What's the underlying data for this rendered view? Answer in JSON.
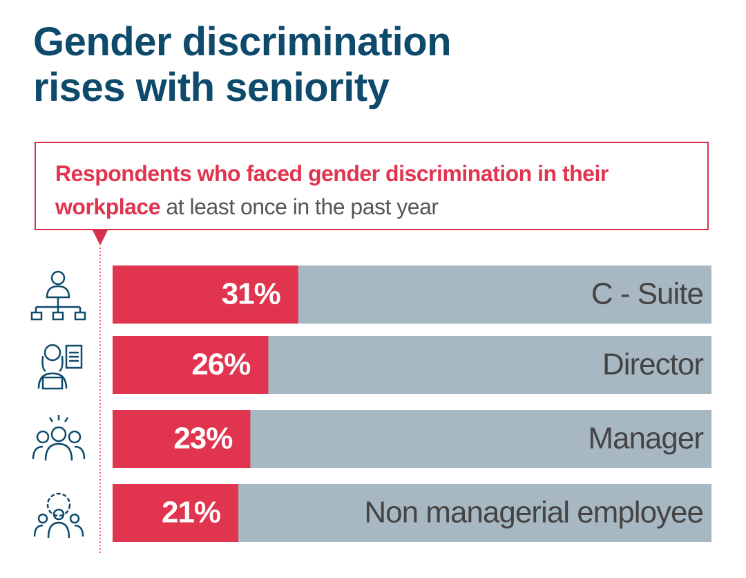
{
  "chart_data": {
    "type": "bar",
    "orientation": "horizontal",
    "title": "Gender discrimination rises with seniority",
    "subtitle": [
      "Respondents who faced gender discrimination in their workplace",
      "at least once in the past year"
    ],
    "categories": [
      "C - Suite",
      "Director",
      "Manager",
      "Non managerial employee"
    ],
    "values": [
      31,
      26,
      23,
      21
    ],
    "value_labels": [
      "31%",
      "26%",
      "23%",
      "21%"
    ],
    "color": "#e0344f",
    "background_color": "#a7b8c2",
    "xlim": [
      0,
      100
    ]
  }
}
